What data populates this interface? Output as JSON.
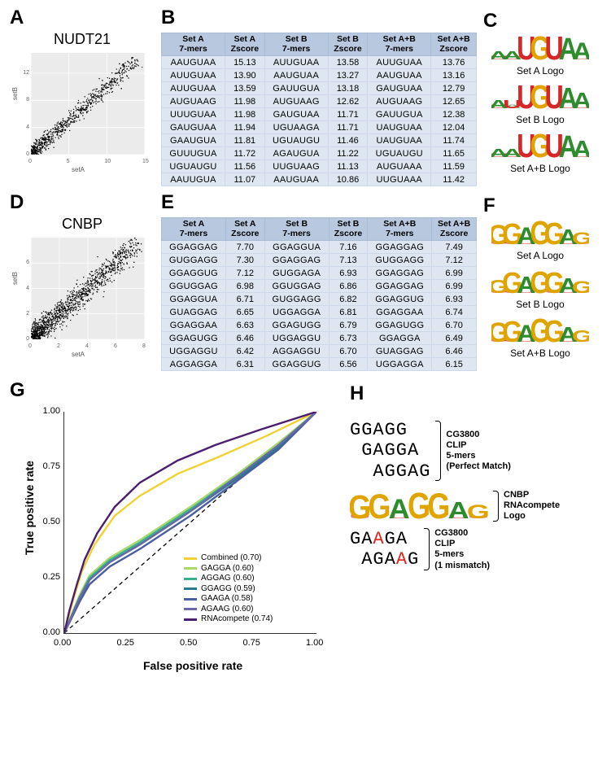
{
  "colors": {
    "A": "#2e8b2e",
    "C": "#1f4fd6",
    "G": "#e0a400",
    "U": "#d62728",
    "T": "#d62728"
  },
  "panelA": {
    "label": "A",
    "title": "NUDT21",
    "xlabel": "setA",
    "ylabel": "setB",
    "bg": "#ebebeb",
    "grid": "#f6f6f6",
    "point_color": "#000000",
    "xlim": [
      0,
      15
    ],
    "ylim": [
      0,
      15
    ],
    "xticks": [
      0,
      5,
      10,
      15
    ],
    "yticks": [
      0,
      4,
      8,
      12
    ],
    "n_points": 800,
    "noise": 0.55,
    "outliers": 14
  },
  "panelD": {
    "label": "D",
    "title": "CNBP",
    "xlabel": "setA",
    "ylabel": "setB",
    "bg": "#ebebeb",
    "grid": "#f6f6f6",
    "point_color": "#000000",
    "xlim": [
      0,
      8
    ],
    "ylim": [
      0,
      8
    ],
    "xticks": [
      0,
      2,
      4,
      6,
      8
    ],
    "yticks": [
      0,
      2,
      4,
      6
    ],
    "n_points": 1400,
    "noise": 0.45,
    "outliers": 8
  },
  "panelB": {
    "label": "B",
    "headers": [
      "Set A\n7-mers",
      "Set A\nZscore",
      "Set B\n7-mers",
      "Set B\nZscore",
      "Set A+B\n7-mers",
      "Set A+B\nZscore"
    ],
    "rows": [
      [
        "AAUGUAA",
        "15.13",
        "AUUGUAA",
        "13.58",
        "AUUGUAA",
        "13.76"
      ],
      [
        "AUUGUAA",
        "13.90",
        "AAUGUAA",
        "13.27",
        "AAUGUAA",
        "13.16"
      ],
      [
        "AUUGUAA",
        "13.59",
        "GAUUGUA",
        "13.18",
        "GAUGUAA",
        "12.79"
      ],
      [
        "AUGUAAG",
        "11.98",
        "AUGUAAG",
        "12.62",
        "AUGUAAG",
        "12.65"
      ],
      [
        "UUUGUAA",
        "11.98",
        "GAUGUAA",
        "11.71",
        "GAUUGUA",
        "12.38"
      ],
      [
        "GAUGUAA",
        "11.94",
        "UGUAAGA",
        "11.71",
        "UAUGUAA",
        "12.04"
      ],
      [
        "GAAUGUA",
        "11.81",
        "UGUAUGU",
        "11.46",
        "UAUGUAA",
        "11.74"
      ],
      [
        "GUUUGUA",
        "11.72",
        "AGAUGUA",
        "11.22",
        "UGUAUGU",
        "11.65"
      ],
      [
        "UGUAUGU",
        "11.56",
        "UUGUAAG",
        "11.13",
        "AUGUAAA",
        "11.59"
      ],
      [
        "AAUUGUA",
        "11.07",
        "AAUGUAA",
        "10.86",
        "UUGUAAA",
        "11.42"
      ]
    ]
  },
  "panelE": {
    "label": "E",
    "headers": [
      "Set A\n7-mers",
      "Set A\nZscore",
      "Set B\n7-mers",
      "Set B\nZscore",
      "Set A+B\n7-mers",
      "Set A+B\nZscore"
    ],
    "rows": [
      [
        "GGAGGAG",
        "7.70",
        "GGAGGUA",
        "7.16",
        "GGAGGAG",
        "7.49"
      ],
      [
        "GUGGAGG",
        "7.30",
        "GGAGGAG",
        "7.13",
        "GUGGAGG",
        "7.12"
      ],
      [
        "GGAGGUG",
        "7.12",
        "GUGGAGA",
        "6.93",
        "GGAGGAG",
        "6.99"
      ],
      [
        "GGUGGAG",
        "6.98",
        "GGUGGAG",
        "6.86",
        "GGAGGAG",
        "6.99"
      ],
      [
        "GGAGGUA",
        "6.71",
        "GUGGAGG",
        "6.82",
        "GGAGGUG",
        "6.93"
      ],
      [
        "GUAGGAG",
        "6.65",
        "UGGAGGA",
        "6.81",
        "GGAGGAA",
        "6.74"
      ],
      [
        "GGAGGAA",
        "6.63",
        "GGAGUGG",
        "6.79",
        "GGAGUGG",
        "6.70"
      ],
      [
        "GGAGUGG",
        "6.46",
        "UGGAGGU",
        "6.73",
        "GGAGGA",
        "6.49"
      ],
      [
        "UGGAGGU",
        "6.42",
        "AGGAGGU",
        "6.70",
        "GUAGGAG",
        "6.46"
      ],
      [
        "AGGAGGA",
        "6.31",
        "GGAGGUG",
        "6.56",
        "UGGAGGA",
        "6.15"
      ]
    ]
  },
  "panelC": {
    "label": "C",
    "logos": [
      {
        "caption": "Set A Logo",
        "seq": "UGUAA",
        "pre": "AA",
        "heights": [
          0.35,
          0.35,
          0.95,
          0.95,
          0.95,
          0.9,
          0.7
        ]
      },
      {
        "caption": "Set B Logo",
        "seq": "UGUAA",
        "pre": "AU",
        "heights": [
          0.35,
          0.35,
          0.95,
          0.95,
          0.95,
          0.85,
          0.65
        ]
      },
      {
        "caption": "Set A+B Logo",
        "seq": "UGUAA",
        "pre": "AA",
        "heights": [
          0.35,
          0.35,
          0.95,
          0.95,
          0.95,
          0.9,
          0.68
        ]
      }
    ]
  },
  "panelF": {
    "label": "F",
    "logos": [
      {
        "caption": "Set A Logo",
        "seq": "GGAGGAG",
        "heights": [
          0.8,
          0.85,
          0.7,
          0.95,
          0.9,
          0.6,
          0.5
        ]
      },
      {
        "caption": "Set B Logo",
        "seq": "GGAGGAG",
        "heights": [
          0.55,
          0.85,
          0.68,
          0.9,
          0.85,
          0.6,
          0.5
        ]
      },
      {
        "caption": "Set A+B Logo",
        "seq": "GGAGGAG",
        "heights": [
          0.8,
          0.85,
          0.7,
          0.95,
          0.9,
          0.6,
          0.48
        ]
      }
    ]
  },
  "panelG": {
    "label": "G",
    "xlabel": "False positive rate",
    "ylabel": "True positive rate",
    "xlim": [
      0,
      1
    ],
    "ylim": [
      0,
      1
    ],
    "ticks": [
      0.0,
      0.25,
      0.5,
      0.75,
      1.0
    ],
    "diag_color": "#000000",
    "curves": [
      {
        "name": "Combined (0.70)",
        "color": "#f0d233",
        "pts": [
          [
            0,
            0
          ],
          [
            0.03,
            0.13
          ],
          [
            0.07,
            0.28
          ],
          [
            0.12,
            0.4
          ],
          [
            0.2,
            0.53
          ],
          [
            0.3,
            0.62
          ],
          [
            0.45,
            0.72
          ],
          [
            0.6,
            0.79
          ],
          [
            0.8,
            0.89
          ],
          [
            1,
            1
          ]
        ]
      },
      {
        "name": "GAGGA (0.60)",
        "color": "#a6d96a",
        "pts": [
          [
            0,
            0
          ],
          [
            0.06,
            0.17
          ],
          [
            0.1,
            0.26
          ],
          [
            0.18,
            0.34
          ],
          [
            0.3,
            0.42
          ],
          [
            0.5,
            0.57
          ],
          [
            0.7,
            0.73
          ],
          [
            0.85,
            0.86
          ],
          [
            1,
            1
          ]
        ]
      },
      {
        "name": "AGGAG (0.60)",
        "color": "#3bb08f",
        "pts": [
          [
            0,
            0
          ],
          [
            0.06,
            0.16
          ],
          [
            0.1,
            0.25
          ],
          [
            0.18,
            0.33
          ],
          [
            0.3,
            0.41
          ],
          [
            0.5,
            0.56
          ],
          [
            0.7,
            0.72
          ],
          [
            0.85,
            0.85
          ],
          [
            1,
            1
          ]
        ]
      },
      {
        "name": "GGAGG (0.59)",
        "color": "#2b7a8c",
        "pts": [
          [
            0,
            0
          ],
          [
            0.06,
            0.15
          ],
          [
            0.1,
            0.24
          ],
          [
            0.18,
            0.32
          ],
          [
            0.3,
            0.4
          ],
          [
            0.5,
            0.55
          ],
          [
            0.7,
            0.71
          ],
          [
            0.85,
            0.84
          ],
          [
            1,
            1
          ]
        ]
      },
      {
        "name": "GAAGA (0.58)",
        "color": "#4a5ea0",
        "pts": [
          [
            0,
            0
          ],
          [
            0.06,
            0.14
          ],
          [
            0.1,
            0.22
          ],
          [
            0.18,
            0.3
          ],
          [
            0.3,
            0.38
          ],
          [
            0.5,
            0.53
          ],
          [
            0.7,
            0.7
          ],
          [
            0.85,
            0.83
          ],
          [
            1,
            1
          ]
        ]
      },
      {
        "name": "AGAAG (0.60)",
        "color": "#6a6aa8",
        "pts": [
          [
            0,
            0
          ],
          [
            0.06,
            0.16
          ],
          [
            0.1,
            0.24
          ],
          [
            0.18,
            0.32
          ],
          [
            0.3,
            0.4
          ],
          [
            0.5,
            0.55
          ],
          [
            0.7,
            0.72
          ],
          [
            0.85,
            0.85
          ],
          [
            1,
            1
          ]
        ]
      },
      {
        "name": "RNAcompete (0.74)",
        "color": "#4b1f6f",
        "pts": [
          [
            0,
            0
          ],
          [
            0.02,
            0.1
          ],
          [
            0.05,
            0.22
          ],
          [
            0.08,
            0.33
          ],
          [
            0.13,
            0.45
          ],
          [
            0.2,
            0.57
          ],
          [
            0.3,
            0.68
          ],
          [
            0.45,
            0.78
          ],
          [
            0.6,
            0.85
          ],
          [
            0.78,
            0.92
          ],
          [
            1,
            1
          ]
        ]
      }
    ],
    "legend_header": ""
  },
  "panelH": {
    "label": "H",
    "top_group_label": "CG3800\nCLIP\n5-mers\n(Perfect Match)",
    "top_group": [
      "GGAGG",
      " GAGGA",
      "  AGGAG"
    ],
    "middle_label": "CNBP\nRNAcompete\nLogo",
    "middle_logo": {
      "seq": "GGAGGAG",
      "heights": [
        0.85,
        0.9,
        0.72,
        0.95,
        0.93,
        0.6,
        0.5
      ]
    },
    "bottom_group_label": "CG3800\nCLIP\n5-mers\n(1 mismatch)",
    "bottom_group": [
      {
        "text": "GAAGA",
        "mm": [
          2
        ]
      },
      {
        "text": " AGAAG",
        "mm": [
          3
        ]
      }
    ]
  }
}
